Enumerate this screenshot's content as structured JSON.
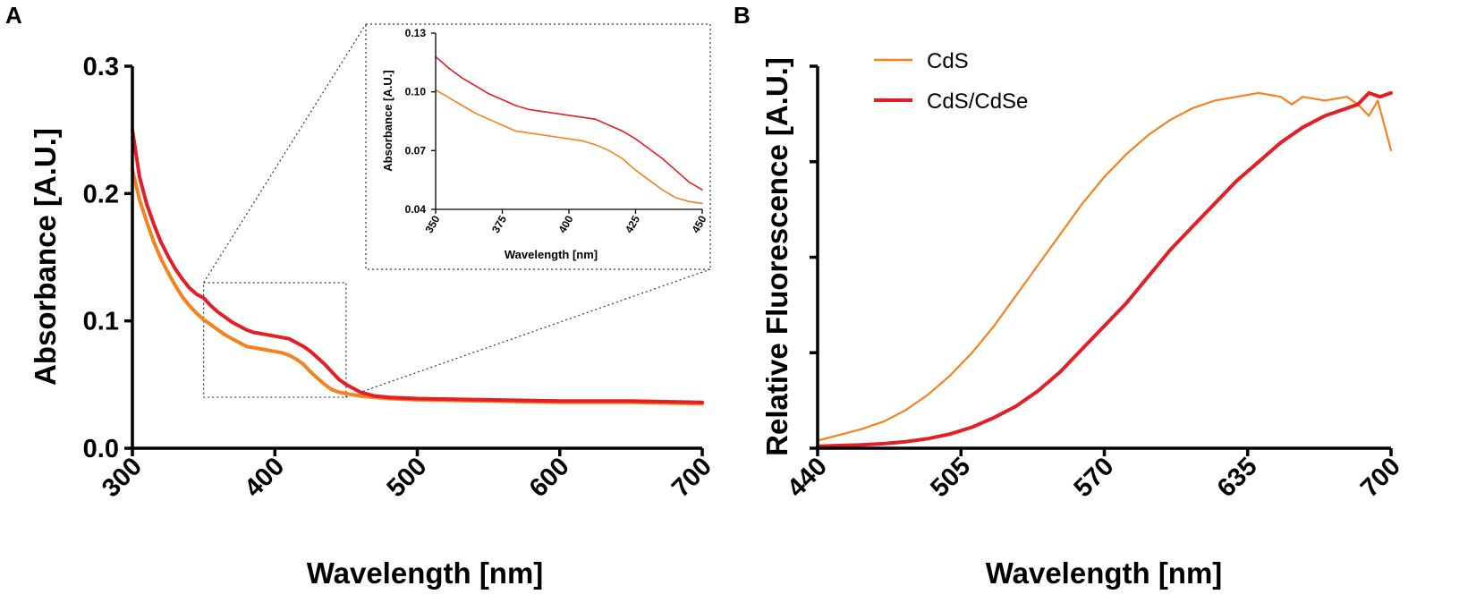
{
  "panels": {
    "a": {
      "letter": "A"
    },
    "b": {
      "letter": "B"
    }
  },
  "colors": {
    "cds": "#f5821f",
    "cdscdse": "#e31e24",
    "axis": "#000000",
    "zoom": "#333333"
  },
  "chart_data": [
    {
      "id": "absorbance",
      "type": "line",
      "title": "",
      "xlabel": "Wavelength [nm]",
      "ylabel": "Absorbance [A.U.]",
      "xlim": [
        300,
        700
      ],
      "ylim": [
        0,
        0.3
      ],
      "xticks": [
        "300",
        "400",
        "500",
        "600",
        "700"
      ],
      "yticks": [
        "0.0",
        "0.1",
        "0.2",
        "0.3"
      ],
      "zoom_box": {
        "x": [
          350,
          450
        ],
        "y": [
          0.04,
          0.13
        ]
      },
      "series": [
        {
          "name": "CdS",
          "color": "#f5821f",
          "x": [
            300,
            305,
            310,
            315,
            320,
            325,
            330,
            335,
            340,
            345,
            350,
            355,
            360,
            365,
            370,
            375,
            380,
            385,
            390,
            395,
            400,
            405,
            410,
            415,
            420,
            425,
            430,
            435,
            440,
            445,
            450,
            460,
            470,
            480,
            500,
            550,
            600,
            650,
            700
          ],
          "y": [
            0.219,
            0.195,
            0.178,
            0.162,
            0.149,
            0.138,
            0.128,
            0.119,
            0.112,
            0.106,
            0.101,
            0.097,
            0.093,
            0.089,
            0.086,
            0.083,
            0.08,
            0.079,
            0.078,
            0.077,
            0.076,
            0.075,
            0.073,
            0.07,
            0.066,
            0.06,
            0.055,
            0.05,
            0.046,
            0.044,
            0.043,
            0.041,
            0.04,
            0.039,
            0.038,
            0.037,
            0.036,
            0.036,
            0.035
          ]
        },
        {
          "name": "CdS/CdSe",
          "color": "#e31e24",
          "x": [
            300,
            305,
            310,
            315,
            320,
            325,
            330,
            335,
            340,
            345,
            350,
            355,
            360,
            365,
            370,
            375,
            380,
            385,
            390,
            395,
            400,
            405,
            410,
            415,
            420,
            425,
            430,
            435,
            440,
            445,
            450,
            460,
            470,
            480,
            500,
            550,
            600,
            650,
            700
          ],
          "y": [
            0.25,
            0.213,
            0.192,
            0.176,
            0.162,
            0.151,
            0.141,
            0.133,
            0.126,
            0.121,
            0.118,
            0.112,
            0.107,
            0.103,
            0.099,
            0.096,
            0.093,
            0.091,
            0.09,
            0.089,
            0.088,
            0.087,
            0.086,
            0.083,
            0.08,
            0.076,
            0.071,
            0.066,
            0.06,
            0.054,
            0.05,
            0.044,
            0.041,
            0.04,
            0.039,
            0.038,
            0.037,
            0.037,
            0.036
          ]
        }
      ]
    },
    {
      "id": "absorbance-inset",
      "type": "line",
      "title": "",
      "xlabel": "Wavelength [nm]",
      "ylabel": "Absorbance [A.U.]",
      "xlim": [
        350,
        450
      ],
      "ylim": [
        0.04,
        0.13
      ],
      "xticks": [
        "350",
        "375",
        "400",
        "425",
        "450"
      ],
      "yticks": [
        "0.04",
        "0.07",
        "0.10",
        "0.13"
      ],
      "series": [
        {
          "name": "CdS",
          "color": "#f5821f",
          "x": [
            350,
            355,
            360,
            365,
            370,
            375,
            380,
            385,
            390,
            395,
            400,
            405,
            410,
            415,
            420,
            425,
            430,
            435,
            440,
            445,
            450
          ],
          "y": [
            0.101,
            0.097,
            0.093,
            0.089,
            0.086,
            0.083,
            0.08,
            0.079,
            0.078,
            0.077,
            0.076,
            0.075,
            0.073,
            0.07,
            0.066,
            0.06,
            0.055,
            0.05,
            0.046,
            0.044,
            0.043
          ]
        },
        {
          "name": "CdS/CdSe",
          "color": "#e31e24",
          "x": [
            350,
            355,
            360,
            365,
            370,
            375,
            380,
            385,
            390,
            395,
            400,
            405,
            410,
            415,
            420,
            425,
            430,
            435,
            440,
            445,
            450
          ],
          "y": [
            0.118,
            0.112,
            0.107,
            0.103,
            0.099,
            0.096,
            0.093,
            0.091,
            0.09,
            0.089,
            0.088,
            0.087,
            0.086,
            0.083,
            0.08,
            0.076,
            0.071,
            0.066,
            0.06,
            0.054,
            0.05
          ]
        }
      ]
    },
    {
      "id": "fluorescence",
      "type": "line",
      "title": "",
      "xlabel": "Wavelength [nm]",
      "ylabel": "Relative Fluorescence [A.U.]",
      "xlim": [
        440,
        700
      ],
      "ylim": [
        0,
        1
      ],
      "xticks": [
        "440",
        "505",
        "570",
        "635",
        "700"
      ],
      "yticks": [
        "",
        "",
        "",
        "",
        ""
      ],
      "legend": {
        "position": "top-left",
        "entries": [
          "CdS",
          "CdS/CdSe"
        ]
      },
      "series": [
        {
          "name": "CdS",
          "color": "#f5821f",
          "x": [
            440,
            450,
            460,
            470,
            480,
            490,
            500,
            510,
            520,
            530,
            540,
            550,
            560,
            570,
            580,
            590,
            600,
            610,
            620,
            630,
            640,
            650,
            655,
            660,
            670,
            680,
            685,
            690,
            694,
            700
          ],
          "y": [
            0.02,
            0.035,
            0.05,
            0.07,
            0.1,
            0.14,
            0.19,
            0.25,
            0.32,
            0.4,
            0.48,
            0.56,
            0.64,
            0.71,
            0.77,
            0.82,
            0.86,
            0.89,
            0.91,
            0.92,
            0.93,
            0.92,
            0.9,
            0.92,
            0.91,
            0.92,
            0.9,
            0.87,
            0.91,
            0.78
          ]
        },
        {
          "name": "CdS/CdSe",
          "color": "#e31e24",
          "x": [
            440,
            450,
            460,
            470,
            480,
            490,
            500,
            510,
            520,
            530,
            540,
            550,
            560,
            570,
            580,
            590,
            600,
            610,
            620,
            630,
            640,
            650,
            660,
            670,
            680,
            685,
            690,
            695,
            700
          ],
          "y": [
            0.005,
            0.007,
            0.009,
            0.012,
            0.017,
            0.025,
            0.037,
            0.055,
            0.08,
            0.11,
            0.15,
            0.2,
            0.26,
            0.32,
            0.38,
            0.45,
            0.52,
            0.58,
            0.64,
            0.7,
            0.75,
            0.8,
            0.84,
            0.87,
            0.89,
            0.9,
            0.93,
            0.92,
            0.93
          ]
        }
      ]
    }
  ]
}
